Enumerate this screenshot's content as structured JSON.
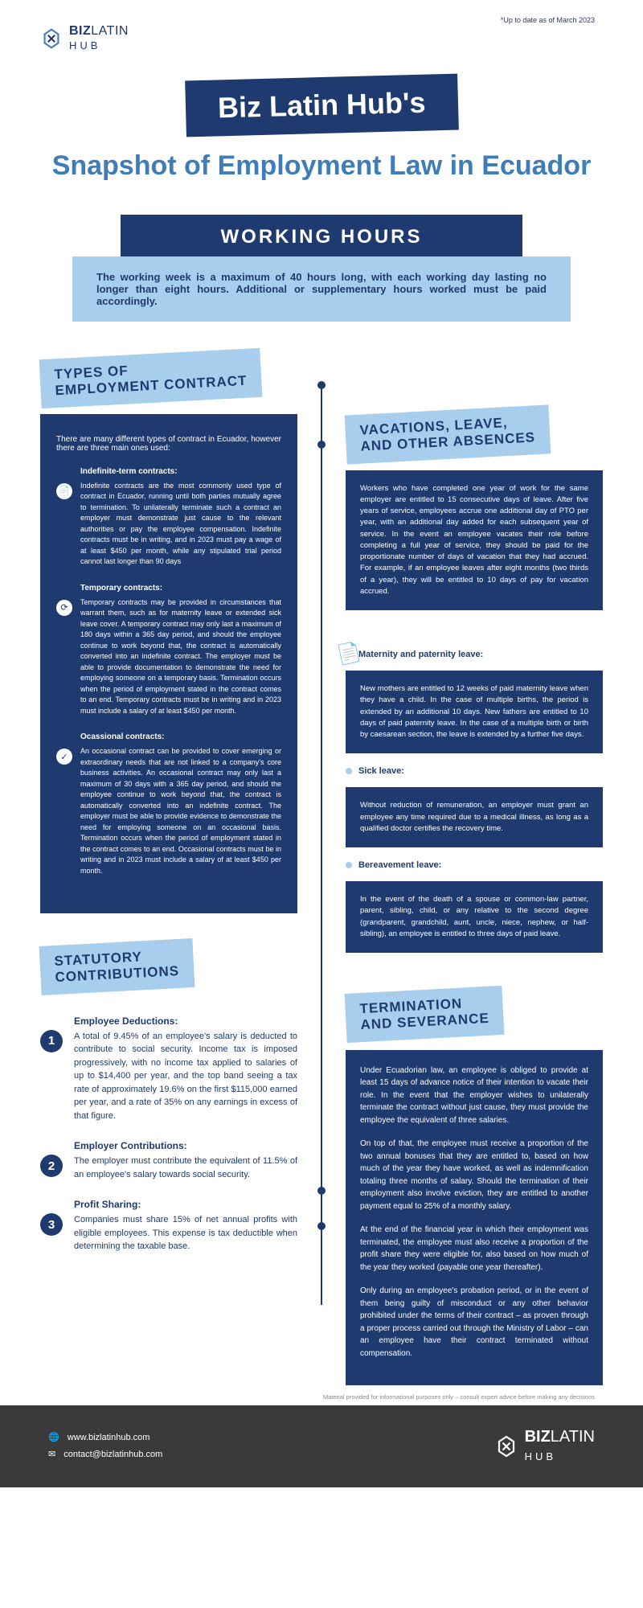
{
  "top_note": "*Up to date as of March 2023",
  "brand": {
    "bold": "BIZ",
    "mid": "LATIN",
    "sub": "HUB"
  },
  "title_box": "Biz Latin Hub's",
  "subtitle": "Snapshot of Employment Law in Ecuador",
  "working_hours": {
    "heading": "WORKING HOURS",
    "text": "The working week is a maximum of 40 hours long, with each working day lasting no longer than eight hours. Additional or supplementary hours worked must be paid accordingly."
  },
  "contracts": {
    "tag": "TYPES OF\nEMPLOYMENT CONTRACT",
    "intro": "There are many different types of contract in Ecuador, however there are three main ones used:",
    "items": [
      {
        "icon": "📄",
        "title": "Indefinite-term contracts:",
        "body": "Indefinite contracts are the most commonly used type of contract in Ecuador, running until both parties mutually agree to termination. To unilaterally terminate such a contract an employer must demonstrate just cause to the relevant authorities or pay the employee compensation. Indefinite contracts must be in writing, and in 2023 must pay a wage of at least $450 per month, while any stipulated trial period cannot last longer than 90 days"
      },
      {
        "icon": "⟳",
        "title": "Temporary contracts:",
        "body": "Temporary contracts may be provided in circumstances that warrant them, such as for maternity leave or extended sick leave cover. A temporary contract may only last a maximum of 180 days within a 365 day period, and should the employee continue to work beyond that, the contract is automatically converted into an indefinite contract. The employer must be able to provide documentation to demonstrate the need for employing someone on a temporary basis. Termination occurs when the period of employment stated in the contract comes to an end. Temporary contracts must be in writing and in 2023 must include a salary of at least $450 per month."
      },
      {
        "icon": "✓",
        "title": "Ocassional contracts:",
        "body": "An occasional contract can be provided to cover emerging or extraordinary needs that are not linked to a company's core business activities. An occasional contract may only last a maximum of 30 days with a 365 day period, and should the employee continue to work beyond that, the contract is automatically converted into an indefinite contract. The employer must be able to provide evidence to demonstrate the need for employing someone on an occasional basis. Termination occurs when the period of employment stated in the contract comes to an end. Occasional contracts must be in writing and in 2023 must include a salary of at least $450 per month."
      }
    ]
  },
  "vacations": {
    "tag": "VACATIONS, LEAVE,\nAND OTHER ABSENCES",
    "main": "Workers who have completed one year of work for the same employer are entitled to 15 consecutive days of leave. After five years of service, employees accrue one additional day of PTO per year, with an additional day added for each subsequent year of service. In the event an employee vacates their role before completing a full year of service, they should be paid for the proportionate number of days of vacation that they had accrued. For example, if an employee leaves after eight months (two thirds of a year), they will be entitled to 10 days of pay for vacation accrued.",
    "sub": [
      {
        "title": "Maternity and paternity leave:",
        "body": "New mothers are entitled to 12 weeks of paid maternity leave when they have a child. In the case of multiple births, the period is extended by an additional 10 days. New fathers are entitled to 10 days of paid paternity leave. In the case of a multiple birth or birth by caesarean section, the leave is extended by a further five days."
      },
      {
        "title": "Sick leave:",
        "body": "Without reduction of remuneration, an employer must grant an employee any time required due to a medical illness, as long as a qualified doctor certifies the recovery time."
      },
      {
        "title": "Bereavement leave:",
        "body": "In the event of the death of a spouse or common-law partner, parent, sibling, child, or any relative to the second degree (grandparent, grandchild, aunt, uncle, niece, nephew, or half-sibling), an employee is entitled to three days of paid leave."
      }
    ]
  },
  "statutory": {
    "tag": "STATUTORY\nCONTRIBUTIONS",
    "items": [
      {
        "n": "1",
        "title": "Employee Deductions:",
        "body": "A total of 9.45% of an employee's salary is deducted to contribute to social security. Income tax is imposed progressively, with no income tax applied to salaries of up to $14,400 per year, and the top band seeing a tax rate of approximately 19.6% on the first $115,000 earned per year, and a rate of 35% on any earnings in excess of that figure."
      },
      {
        "n": "2",
        "title": "Employer Contributions:",
        "body": "The employer must contribute the equivalent of 11.5% of an employee's salary towards social security."
      },
      {
        "n": "3",
        "title": "Profit Sharing:",
        "body": "Companies must share 15% of net annual profits with eligible employees. This expense is tax deductible when determining the taxable base."
      }
    ]
  },
  "termination": {
    "tag": "TERMINATION\nAND SEVERANCE",
    "paras": [
      "Under Ecuadorian law, an employee is obliged to provide at least 15 days of advance notice of their intention to vacate their role. In the event that the employer wishes to unilaterally terminate the contract without just cause, they must provide the employee the equivalent of three salaries.",
      "On top of that, the employee must receive a proportion of the two annual bonuses that they are entitled to, based on how much of the year they have worked, as well as indemnification totaling three months of salary. Should the termination of their employment also involve eviction, they are entitled to another payment equal to 25% of a monthly salary.",
      "At the end of the financial year in which their employment was terminated, the employee must also receive a proportion of the profit share they were eligible for, also based on how much of the year they worked (payable one year thereafter).",
      "Only during an employee's probation period, or in the event of them being guilty of misconduct or any other behavior prohibited under the terms of their contract – as proven through a proper process carried out through the Ministry of Labor – can an employee have their contract terminated without compensation."
    ]
  },
  "disclaimer": "Material provided for informational purposes only – consult expert advice before making any decisions",
  "footer": {
    "web": "www.bizlatinhub.com",
    "email": "contact@bizlatinhub.com"
  }
}
